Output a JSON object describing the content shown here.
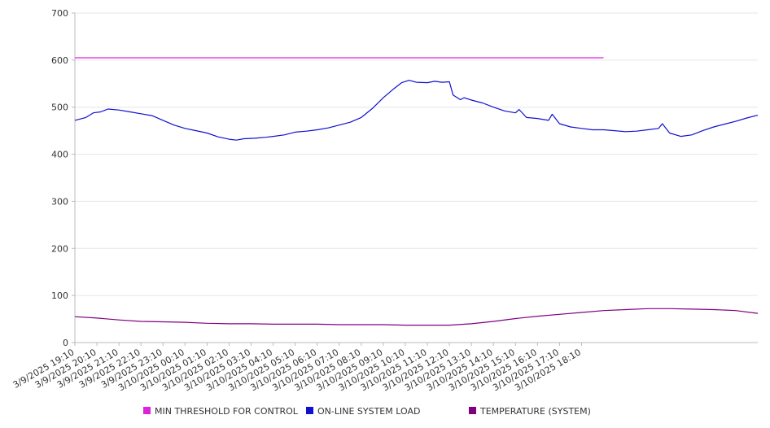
{
  "chart_data": {
    "type": "line",
    "title": "",
    "xlabel": "",
    "ylabel": "",
    "ylim": [
      0,
      700
    ],
    "yticks": [
      0,
      100,
      200,
      300,
      400,
      500,
      600,
      700
    ],
    "grid": true,
    "legend_position": "bottom",
    "x_tick_labels": [
      "3/9/2025 19:10",
      "3/9/2025 20:10",
      "3/9/2025 21:10",
      "3/9/2025 22:10",
      "3/9/2025 23:10",
      "3/10/2025 00:10",
      "3/10/2025 01:10",
      "3/10/2025 02:10",
      "3/10/2025 03:10",
      "3/10/2025 04:10",
      "3/10/2025 05:10",
      "3/10/2025 06:10",
      "3/10/2025 07:10",
      "3/10/2025 08:10",
      "3/10/2025 09:10",
      "3/10/2025 10:10",
      "3/10/2025 11:10",
      "3/10/2025 12:10",
      "3/10/2025 13:10",
      "3/10/2025 14:10",
      "3/10/2025 15:10",
      "3/10/2025 16:10",
      "3/10/2025 17:10",
      "3/10/2025 18:10"
    ],
    "series": [
      {
        "name": "MIN THRESHOLD FOR CONTROL",
        "color": "#e020e0",
        "points": [
          [
            "3/9/2025 19:10",
            605
          ],
          [
            "3/10/2025 19:10",
            605
          ]
        ]
      },
      {
        "name": "ON-LINE SYSTEM LOAD",
        "color": "#1010d0",
        "points": [
          [
            "3/9/2025 19:10",
            472
          ],
          [
            "3/9/2025 19:40",
            478
          ],
          [
            "3/9/2025 20:00",
            488
          ],
          [
            "3/9/2025 20:20",
            490
          ],
          [
            "3/9/2025 20:40",
            496
          ],
          [
            "3/9/2025 21:10",
            494
          ],
          [
            "3/9/2025 21:40",
            490
          ],
          [
            "3/9/2025 22:10",
            486
          ],
          [
            "3/9/2025 22:40",
            482
          ],
          [
            "3/9/2025 23:10",
            472
          ],
          [
            "3/9/2025 23:40",
            462
          ],
          [
            "3/10/2025 00:10",
            455
          ],
          [
            "3/10/2025 00:40",
            450
          ],
          [
            "3/10/2025 01:10",
            445
          ],
          [
            "3/10/2025 01:40",
            437
          ],
          [
            "3/10/2025 02:10",
            432
          ],
          [
            "3/10/2025 02:30",
            430
          ],
          [
            "3/10/2025 02:50",
            433
          ],
          [
            "3/10/2025 03:20",
            434
          ],
          [
            "3/10/2025 03:50",
            436
          ],
          [
            "3/10/2025 04:10",
            438
          ],
          [
            "3/10/2025 04:40",
            441
          ],
          [
            "3/10/2025 05:10",
            447
          ],
          [
            "3/10/2025 05:40",
            449
          ],
          [
            "3/10/2025 06:10",
            452
          ],
          [
            "3/10/2025 06:40",
            456
          ],
          [
            "3/10/2025 07:10",
            462
          ],
          [
            "3/10/2025 07:40",
            468
          ],
          [
            "3/10/2025 08:10",
            478
          ],
          [
            "3/10/2025 08:40",
            497
          ],
          [
            "3/10/2025 09:10",
            520
          ],
          [
            "3/10/2025 09:40",
            540
          ],
          [
            "3/10/2025 10:00",
            552
          ],
          [
            "3/10/2025 10:20",
            557
          ],
          [
            "3/10/2025 10:40",
            553
          ],
          [
            "3/10/2025 11:10",
            552
          ],
          [
            "3/10/2025 11:30",
            555
          ],
          [
            "3/10/2025 11:50",
            553
          ],
          [
            "3/10/2025 12:10",
            554
          ],
          [
            "3/10/2025 12:20",
            526
          ],
          [
            "3/10/2025 12:40",
            516
          ],
          [
            "3/10/2025 12:50",
            520
          ],
          [
            "3/10/2025 13:10",
            515
          ],
          [
            "3/10/2025 13:40",
            509
          ],
          [
            "3/10/2025 14:10",
            500
          ],
          [
            "3/10/2025 14:40",
            492
          ],
          [
            "3/10/2025 15:10",
            488
          ],
          [
            "3/10/2025 15:20",
            495
          ],
          [
            "3/10/2025 15:40",
            478
          ],
          [
            "3/10/2025 16:10",
            476
          ],
          [
            "3/10/2025 16:40",
            472
          ],
          [
            "3/10/2025 16:50",
            485
          ],
          [
            "3/10/2025 17:10",
            465
          ],
          [
            "3/10/2025 17:40",
            458
          ],
          [
            "3/10/2025 18:10",
            455
          ],
          [
            "3/10/2025 18:40",
            452
          ],
          [
            "3/10/2025 19:10",
            452
          ],
          [
            "3/10/2025 19:40",
            450
          ],
          [
            "3/10/2025 20:10",
            448
          ],
          [
            "3/10/2025 20:40",
            449
          ],
          [
            "3/10/2025 21:10",
            452
          ],
          [
            "3/10/2025 21:40",
            455
          ],
          [
            "3/10/2025 21:50",
            465
          ],
          [
            "3/10/2025 22:10",
            445
          ],
          [
            "3/10/2025 22:40",
            438
          ],
          [
            "3/10/2025 23:10",
            441
          ],
          [
            "3/10/2025 23:40",
            450
          ],
          [
            "3/11/2025 00:10",
            458
          ],
          [
            "3/11/2025 00:40",
            464
          ],
          [
            "3/11/2025 01:10",
            470
          ],
          [
            "3/11/2025 01:40",
            477
          ],
          [
            "3/11/2025 02:10",
            483
          ]
        ]
      },
      {
        "name": "TEMPERATURE (SYSTEM)",
        "color": "#800080",
        "points": [
          [
            "3/9/2025 19:10",
            55
          ],
          [
            "3/9/2025 20:10",
            52
          ],
          [
            "3/9/2025 21:10",
            48
          ],
          [
            "3/9/2025 22:10",
            45
          ],
          [
            "3/9/2025 23:10",
            44
          ],
          [
            "3/10/2025 00:10",
            43
          ],
          [
            "3/10/2025 01:10",
            41
          ],
          [
            "3/10/2025 02:10",
            40
          ],
          [
            "3/10/2025 03:10",
            40
          ],
          [
            "3/10/2025 04:10",
            39
          ],
          [
            "3/10/2025 05:10",
            39
          ],
          [
            "3/10/2025 06:10",
            39
          ],
          [
            "3/10/2025 07:10",
            38
          ],
          [
            "3/10/2025 08:10",
            38
          ],
          [
            "3/10/2025 09:10",
            38
          ],
          [
            "3/10/2025 10:10",
            37
          ],
          [
            "3/10/2025 11:10",
            37
          ],
          [
            "3/10/2025 12:10",
            37
          ],
          [
            "3/10/2025 13:10",
            40
          ],
          [
            "3/10/2025 14:10",
            45
          ],
          [
            "3/10/2025 15:10",
            51
          ],
          [
            "3/10/2025 16:10",
            56
          ],
          [
            "3/10/2025 17:10",
            60
          ],
          [
            "3/10/2025 18:10",
            64
          ],
          [
            "3/10/2025 19:10",
            68
          ],
          [
            "3/10/2025 20:10",
            70
          ],
          [
            "3/10/2025 21:10",
            72
          ],
          [
            "3/10/2025 22:10",
            72
          ],
          [
            "3/10/2025 23:10",
            71
          ],
          [
            "3/11/2025 00:10",
            70
          ],
          [
            "3/11/2025 01:10",
            68
          ],
          [
            "3/11/2025 02:10",
            62
          ]
        ]
      }
    ]
  }
}
